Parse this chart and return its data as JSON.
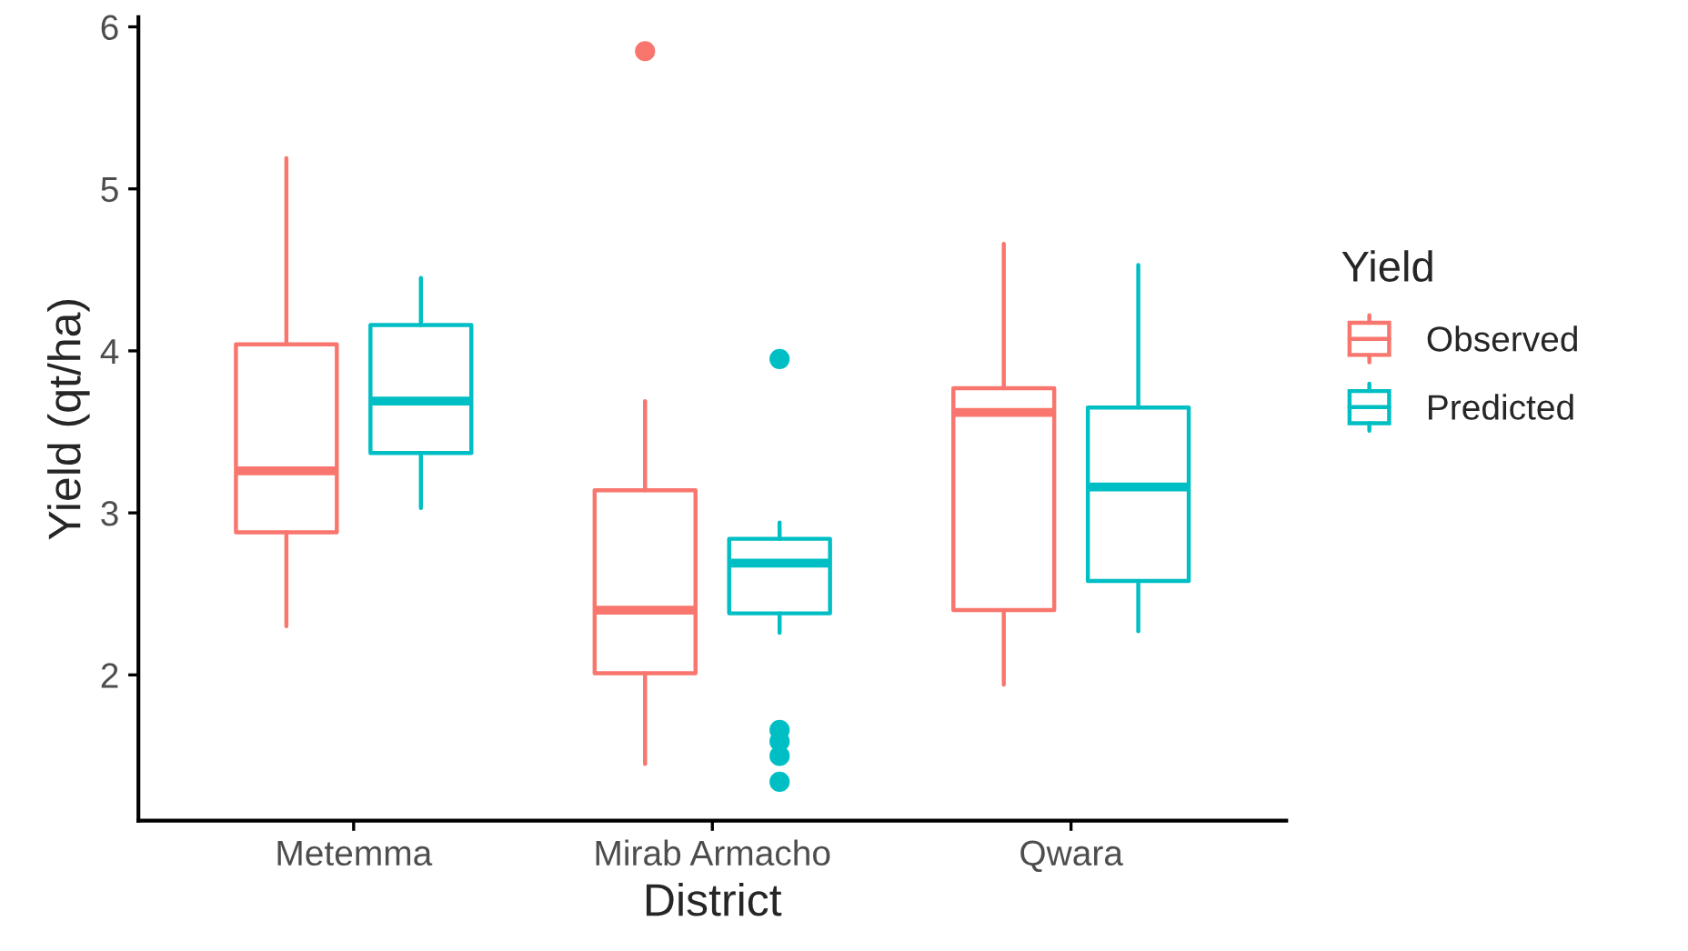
{
  "chart_data": {
    "type": "box",
    "xlabel": "District",
    "ylabel": "Yield (qt/ha)",
    "legend_title": "Yield",
    "legend": "right",
    "grid": false,
    "categories": [
      "Metemma",
      "Mirab Armacho",
      "Qwara"
    ],
    "ylim": [
      1.1,
      6.06
    ],
    "yticks": [
      2,
      3,
      4,
      5,
      6
    ],
    "series": [
      {
        "name": "Observed",
        "color": "#f8766d",
        "boxes": [
          {
            "low": 2.3,
            "q1": 2.88,
            "median": 3.26,
            "q3": 4.04,
            "high": 5.19
          },
          {
            "low": 1.45,
            "q1": 2.01,
            "median": 2.4,
            "q3": 3.14,
            "high": 3.69,
            "outliers": [
              5.85
            ]
          },
          {
            "low": 1.94,
            "q1": 2.4,
            "median": 3.62,
            "q3": 3.77,
            "high": 4.66
          }
        ]
      },
      {
        "name": "Predicted",
        "color": "#00bfc4",
        "boxes": [
          {
            "low": 3.03,
            "q1": 3.37,
            "median": 3.69,
            "q3": 4.16,
            "high": 4.45
          },
          {
            "low": 2.26,
            "q1": 2.38,
            "median": 2.69,
            "q3": 2.84,
            "high": 2.94,
            "outliers": [
              3.95,
              1.66,
              1.59,
              1.5,
              1.34
            ]
          },
          {
            "low": 2.27,
            "q1": 2.58,
            "median": 3.16,
            "q3": 3.65,
            "high": 4.53
          }
        ]
      }
    ]
  }
}
